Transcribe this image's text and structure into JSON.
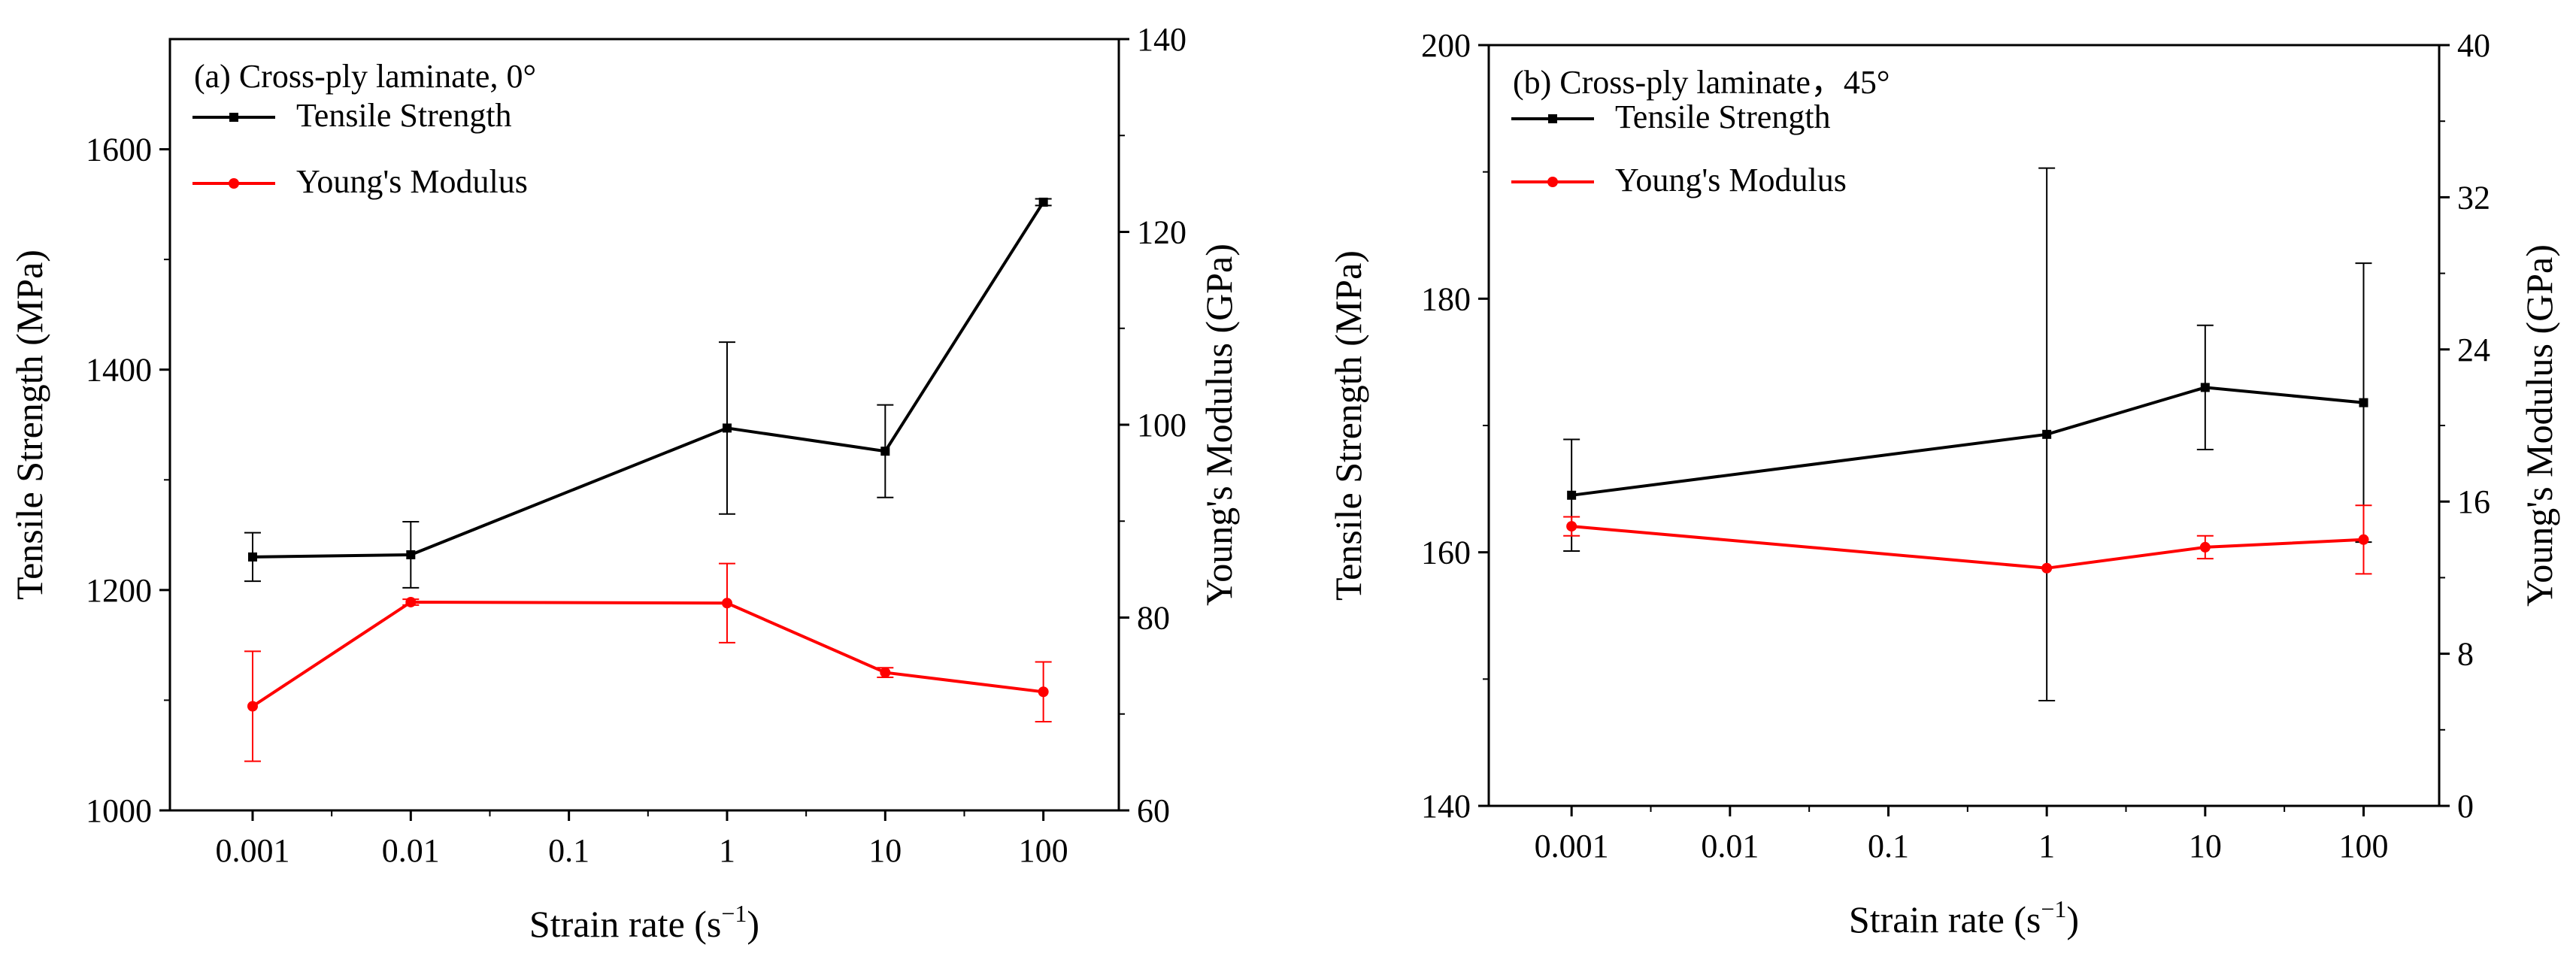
{
  "chart_data": [
    {
      "type": "line",
      "title": "(a) Cross-ply laminate, 0°",
      "xlabel_main": "Strain rate (s",
      "xlabel_sup": "−1",
      "xlabel_end": ")",
      "xscale": "log",
      "xlim": [
        0.0003,
        300
      ],
      "x": [
        0.001,
        0.01,
        1,
        10,
        100
      ],
      "xticks": [
        "0.001",
        "0.01",
        "0.1",
        "1",
        "10",
        "100"
      ],
      "xtick_values": [
        0.001,
        0.01,
        0.1,
        1,
        10,
        100
      ],
      "ylabel_left": "Tensile Strength (MPa)",
      "ylim_left": [
        1000,
        1700
      ],
      "yticks_left": [
        1000,
        1200,
        1400,
        1600
      ],
      "ylabel_right": "Young's Modulus (GPa)",
      "ylim_right": [
        60,
        140
      ],
      "yticks_right": [
        60,
        80,
        100,
        120,
        140
      ],
      "legend_position": "top-left",
      "series": [
        {
          "name": "Tensile Strength",
          "axis": "left",
          "color": "#000000",
          "marker": "square",
          "values": [
            1230,
            1232,
            1347,
            1326,
            1552
          ],
          "errors": [
            22,
            30,
            78,
            42,
            3
          ]
        },
        {
          "name": "Young's Modulus",
          "axis": "right",
          "color": "#ff0000",
          "marker": "circle",
          "values": [
            70.8,
            81.6,
            81.5,
            74.3,
            72.3
          ],
          "errors": [
            5.7,
            0.3,
            4.1,
            0.5,
            3.1
          ]
        }
      ]
    },
    {
      "type": "line",
      "title": "(b) Cross-ply laminate，45°",
      "xlabel_main": "Strain rate (s",
      "xlabel_sup": "−1",
      "xlabel_end": ")",
      "xscale": "log",
      "xlim": [
        0.0003,
        300
      ],
      "x": [
        0.001,
        1,
        10,
        100
      ],
      "xticks": [
        "0.001",
        "0.01",
        "0.1",
        "1",
        "10",
        "100"
      ],
      "xtick_values": [
        0.001,
        0.01,
        0.1,
        1,
        10,
        100
      ],
      "ylabel_left": "Tensile Strength (MPa)",
      "ylim_left": [
        140,
        200
      ],
      "yticks_left": [
        140,
        160,
        180,
        200
      ],
      "ylabel_right": "Young's Modulus (GPa)",
      "ylim_right": [
        0,
        40
      ],
      "yticks_right": [
        0,
        8,
        16,
        24,
        32,
        40
      ],
      "legend_position": "top-left",
      "series": [
        {
          "name": "Tensile Strength",
          "axis": "left",
          "color": "#000000",
          "marker": "square",
          "values": [
            164.5,
            169.3,
            173.0,
            171.8
          ],
          "errors": [
            4.4,
            21.0,
            4.9,
            11.0
          ]
        },
        {
          "name": "Young's Modulus",
          "axis": "right",
          "color": "#ff0000",
          "marker": "circle",
          "values": [
            14.7,
            12.5,
            13.6,
            14.0
          ],
          "errors": [
            0.5,
            0,
            0.6,
            1.8
          ]
        }
      ]
    }
  ]
}
